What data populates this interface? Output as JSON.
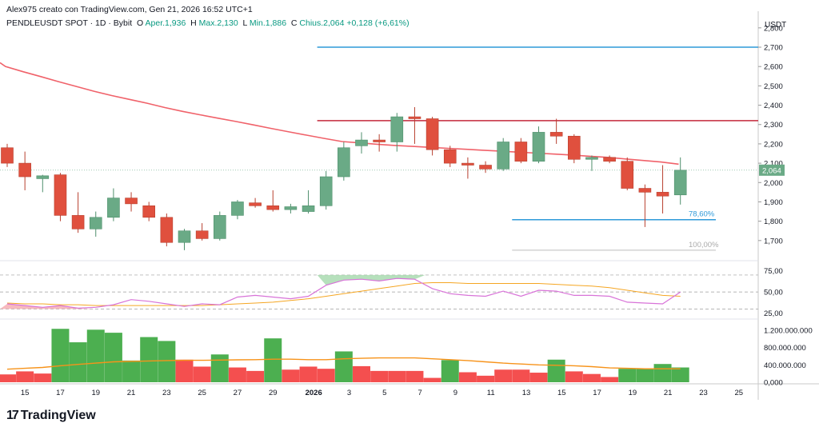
{
  "header": {
    "credit": "Alex975 creato con TradingView.com, Gen 21, 2026 16:52 UTC+1",
    "symbol": "PENDLEUSDT SPOT · 1D · Bybit",
    "open_label": "O",
    "open_value": "Aper.1,936",
    "high_label": "H",
    "high_value": "Max.2,130",
    "low_label": "L",
    "low_value": "Min.1,886",
    "close_label": "C",
    "close_value": "Chius.2,064",
    "change_value": "+0,128 (+6,61%)"
  },
  "axis_unit": "USDT",
  "logo_text": "TradingView",
  "colors": {
    "up": "#6aaa86",
    "down": "#e0503e",
    "ma": "#f0626a",
    "rsi": "#d873d8",
    "rsi_ma": "#f5a623",
    "vol_up": "#4caf50",
    "vol_down": "#f44f4f",
    "vol_ma": "#f7931a",
    "hline_blue": "#2f9ad9",
    "hline_red": "#c4283b",
    "level_gray": "#bdbdbd"
  },
  "chart_data": {
    "type": "candlestick",
    "x_ticks": [
      "15",
      "17",
      "19",
      "21",
      "23",
      "25",
      "27",
      "29",
      "2026",
      "3",
      "5",
      "7",
      "9",
      "11",
      "13",
      "15",
      "17",
      "19",
      "21",
      "23",
      "25"
    ],
    "price_ticks": [
      "2,800",
      "2,700",
      "2,600",
      "2,500",
      "2,400",
      "2,300",
      "2,200",
      "2,100",
      "2,000",
      "1,900",
      "1,800",
      "1,700"
    ],
    "price_range": [
      1600,
      2820
    ],
    "last_price_label": "2,064",
    "candles": [
      {
        "o": 2180,
        "h": 2200,
        "l": 2080,
        "c": 2100
      },
      {
        "o": 2100,
        "h": 2160,
        "l": 1960,
        "c": 2030
      },
      {
        "o": 2020,
        "h": 2040,
        "l": 1950,
        "c": 2035
      },
      {
        "o": 2040,
        "h": 2050,
        "l": 1800,
        "c": 1830
      },
      {
        "o": 1830,
        "h": 1950,
        "l": 1740,
        "c": 1760
      },
      {
        "o": 1760,
        "h": 1850,
        "l": 1720,
        "c": 1820
      },
      {
        "o": 1820,
        "h": 1970,
        "l": 1800,
        "c": 1920
      },
      {
        "o": 1920,
        "h": 1950,
        "l": 1850,
        "c": 1890
      },
      {
        "o": 1880,
        "h": 1900,
        "l": 1800,
        "c": 1820
      },
      {
        "o": 1820,
        "h": 1840,
        "l": 1670,
        "c": 1690
      },
      {
        "o": 1690,
        "h": 1760,
        "l": 1650,
        "c": 1750
      },
      {
        "o": 1750,
        "h": 1790,
        "l": 1700,
        "c": 1710
      },
      {
        "o": 1710,
        "h": 1850,
        "l": 1700,
        "c": 1830
      },
      {
        "o": 1830,
        "h": 1910,
        "l": 1810,
        "c": 1900
      },
      {
        "o": 1895,
        "h": 1920,
        "l": 1870,
        "c": 1880
      },
      {
        "o": 1880,
        "h": 1960,
        "l": 1850,
        "c": 1860
      },
      {
        "o": 1860,
        "h": 1890,
        "l": 1840,
        "c": 1875
      },
      {
        "o": 1850,
        "h": 1960,
        "l": 1840,
        "c": 1880
      },
      {
        "o": 1880,
        "h": 2060,
        "l": 1860,
        "c": 2030
      },
      {
        "o": 2030,
        "h": 2210,
        "l": 2010,
        "c": 2180
      },
      {
        "o": 2190,
        "h": 2260,
        "l": 2150,
        "c": 2220
      },
      {
        "o": 2220,
        "h": 2250,
        "l": 2160,
        "c": 2210
      },
      {
        "o": 2210,
        "h": 2360,
        "l": 2160,
        "c": 2340
      },
      {
        "o": 2340,
        "h": 2390,
        "l": 2200,
        "c": 2330
      },
      {
        "o": 2330,
        "h": 2340,
        "l": 2140,
        "c": 2170
      },
      {
        "o": 2170,
        "h": 2190,
        "l": 2080,
        "c": 2100
      },
      {
        "o": 2100,
        "h": 2130,
        "l": 2020,
        "c": 2090
      },
      {
        "o": 2090,
        "h": 2110,
        "l": 2050,
        "c": 2070
      },
      {
        "o": 2070,
        "h": 2230,
        "l": 2060,
        "c": 2210
      },
      {
        "o": 2210,
        "h": 2230,
        "l": 2100,
        "c": 2110
      },
      {
        "o": 2110,
        "h": 2290,
        "l": 2100,
        "c": 2260
      },
      {
        "o": 2260,
        "h": 2330,
        "l": 2200,
        "c": 2240
      },
      {
        "o": 2240,
        "h": 2250,
        "l": 2100,
        "c": 2120
      },
      {
        "o": 2120,
        "h": 2140,
        "l": 2060,
        "c": 2130
      },
      {
        "o": 2130,
        "h": 2140,
        "l": 2100,
        "c": 2110
      },
      {
        "o": 2110,
        "h": 2130,
        "l": 1960,
        "c": 1970
      },
      {
        "o": 1970,
        "h": 1990,
        "l": 1770,
        "c": 1950
      },
      {
        "o": 1950,
        "h": 2090,
        "l": 1840,
        "c": 1930
      },
      {
        "o": 1936,
        "h": 2130,
        "l": 1886,
        "c": 2064
      }
    ],
    "moving_average": [
      2600,
      2573,
      2548,
      2522,
      2497,
      2472,
      2450,
      2430,
      2410,
      2388,
      2368,
      2350,
      2333,
      2316,
      2298,
      2280,
      2262,
      2245,
      2228,
      2212,
      2205,
      2198,
      2192,
      2187,
      2182,
      2177,
      2172,
      2167,
      2162,
      2157,
      2152,
      2147,
      2142,
      2136,
      2130,
      2122,
      2114,
      2106,
      2095
    ],
    "hlines": [
      {
        "price": 2700,
        "color": "#2f9ad9",
        "from_index": 17.5
      },
      {
        "price": 2320,
        "color": "#c4283b",
        "from_index": 17.5
      },
      {
        "price": 1808,
        "color": "#2f9ad9",
        "from_index": 28.5,
        "to_index": 40,
        "label": "78,60%"
      },
      {
        "price": 1650,
        "color": "#bdbdbd",
        "from_index": 28.5,
        "to_index": 40,
        "label": "100,00%"
      }
    ],
    "rsi": {
      "ticks": [
        "75,00",
        "50,00",
        "25,00"
      ],
      "levels": [
        70,
        50,
        30
      ],
      "values": [
        36,
        34,
        32,
        34,
        31,
        32,
        35,
        41,
        39,
        36,
        33,
        36,
        35,
        44,
        46,
        44,
        42,
        45,
        58,
        64,
        65,
        63,
        66,
        65,
        54,
        48,
        46,
        45,
        51,
        45,
        52,
        51,
        46,
        46,
        45,
        38,
        37,
        36,
        50
      ],
      "ma": [
        37,
        36,
        36,
        35,
        35,
        34,
        34,
        34,
        34,
        34,
        34,
        34,
        35,
        36,
        37,
        38,
        40,
        42,
        45,
        48,
        51,
        54,
        57,
        60,
        61,
        61,
        60,
        60,
        60,
        60,
        60,
        59,
        58,
        57,
        55,
        52,
        49,
        46,
        45
      ]
    },
    "volume": {
      "ticks": [
        "1.200.000.000",
        "800.000.000",
        "400.000.000",
        "0,000"
      ],
      "max": 1400,
      "values": [
        180,
        250,
        200,
        1230,
        920,
        1210,
        1140,
        500,
        1040,
        950,
        520,
        360,
        640,
        340,
        260,
        1010,
        290,
        360,
        310,
        710,
        370,
        260,
        260,
        260,
        100,
        510,
        230,
        150,
        290,
        290,
        220,
        520,
        250,
        190,
        120,
        310,
        310,
        420,
        340
      ],
      "up": [
        false,
        false,
        false,
        true,
        true,
        true,
        true,
        true,
        true,
        true,
        false,
        false,
        true,
        false,
        false,
        true,
        false,
        false,
        false,
        true,
        false,
        false,
        false,
        false,
        false,
        true,
        false,
        false,
        false,
        false,
        false,
        true,
        false,
        false,
        false,
        true,
        true,
        true,
        true
      ],
      "ma": [
        300,
        320,
        340,
        380,
        410,
        440,
        470,
        480,
        490,
        500,
        505,
        505,
        510,
        515,
        520,
        530,
        530,
        520,
        520,
        540,
        550,
        560,
        560,
        560,
        540,
        520,
        500,
        470,
        440,
        420,
        400,
        390,
        380,
        360,
        330,
        320,
        310,
        310,
        310
      ]
    }
  }
}
